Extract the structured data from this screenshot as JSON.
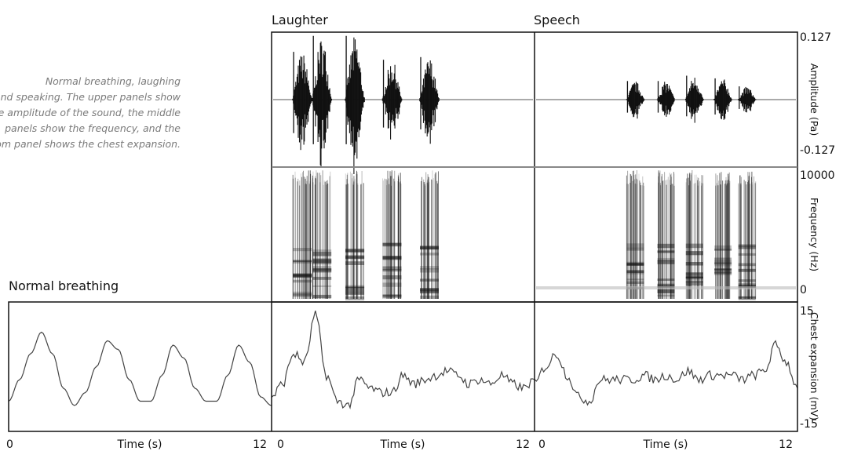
{
  "caption": {
    "lines": [
      "Normal breathing, laughing",
      "and speaking. The upper panels show",
      "the amplitude of the sound, the middle",
      "panels show the frequency, and the",
      "bottom panel shows the chest expansion."
    ]
  },
  "panels": {
    "normal_title": "Normal breathing",
    "laughter_title": "Laughter",
    "speech_title": "Speech"
  },
  "chart_data": {
    "type": "line",
    "x_axis": {
      "label": "Time (s)",
      "range": [
        0,
        12
      ],
      "ticks": [
        "0",
        "12"
      ]
    },
    "amplitude": {
      "ylabel": "Amplitude (Pa)",
      "ylim": [
        -0.127,
        0.127
      ],
      "tick_labels": [
        "0.127",
        "-0.127"
      ],
      "bursts": {
        "Laughter": [
          {
            "t": 1.4,
            "peak": 0.09
          },
          {
            "t": 2.3,
            "peak": 0.12
          },
          {
            "t": 3.8,
            "peak": 0.12
          },
          {
            "t": 5.5,
            "peak": 0.075
          },
          {
            "t": 7.2,
            "peak": 0.08
          }
        ],
        "Speech": [
          {
            "t": 4.6,
            "peak": 0.035
          },
          {
            "t": 6.0,
            "peak": 0.035
          },
          {
            "t": 7.3,
            "peak": 0.045
          },
          {
            "t": 8.6,
            "peak": 0.04
          },
          {
            "t": 9.7,
            "peak": 0.025
          }
        ]
      }
    },
    "frequency": {
      "ylabel": "Frequency (Hz)",
      "ylim": [
        0,
        10000
      ],
      "tick_labels": [
        "10000",
        "0"
      ]
    },
    "chest_expansion": {
      "ylabel": "Chest expansion (mV)",
      "ylim": [
        -15,
        15
      ],
      "tick_labels": [
        "15",
        "-15"
      ],
      "series": [
        {
          "name": "Normal breathing",
          "x": [
            0,
            0.5,
            1,
            1.5,
            2,
            2.5,
            3,
            3.5,
            4,
            4.5,
            5,
            5.5,
            6,
            6.5,
            7,
            7.5,
            8,
            8.5,
            9,
            9.5,
            10,
            10.5,
            11,
            11.5,
            12
          ],
          "y": [
            -8,
            -3,
            3,
            8,
            3,
            -5,
            -9,
            -6,
            0,
            6,
            4,
            -3,
            -8,
            -8,
            -2,
            5,
            2,
            -5,
            -8,
            -8,
            -2,
            5,
            1,
            -7,
            -9
          ]
        },
        {
          "name": "Laughter",
          "x": [
            0,
            0.5,
            1,
            1.5,
            2,
            2.5,
            3,
            3.5,
            4,
            4.5,
            5,
            5.5,
            6,
            6.5,
            7,
            7.5,
            8,
            8.5,
            9,
            9.5,
            10,
            10.5,
            11,
            11.5,
            12
          ],
          "y": [
            -7,
            -4,
            3,
            1,
            12,
            -2,
            -8,
            -9,
            -3,
            -5,
            -6,
            -6,
            -2,
            -4,
            -3,
            -2,
            -1,
            -2,
            -4,
            -3,
            -4,
            -2,
            -4,
            -5,
            -3
          ]
        },
        {
          "name": "Speech",
          "x": [
            0,
            0.5,
            1,
            1.5,
            2,
            2.5,
            3,
            3.5,
            4,
            4.5,
            5,
            5.5,
            6,
            6.5,
            7,
            7.5,
            8,
            8.5,
            9,
            9.5,
            10,
            10.5,
            11,
            11.5,
            12
          ],
          "y": [
            -4,
            0,
            3,
            -2,
            -7,
            -8,
            -3,
            -3,
            -3,
            -3,
            -2,
            -3,
            -2,
            -3,
            -1,
            -3,
            -2,
            -2,
            -2,
            -3,
            -2,
            -1,
            5,
            1,
            -5
          ]
        }
      ]
    }
  }
}
